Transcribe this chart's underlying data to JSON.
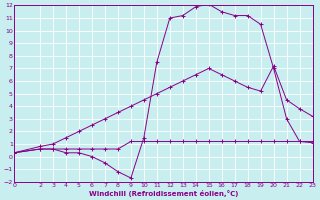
{
  "xlabel": "Windchill (Refroidissement éolien,°C)",
  "background_color": "#c8eef0",
  "grid_color": "#b0d8dc",
  "line_color": "#880088",
  "xlim": [
    0,
    23
  ],
  "ylim": [
    -2,
    12
  ],
  "xticks": [
    0,
    2,
    3,
    4,
    5,
    6,
    7,
    8,
    9,
    10,
    11,
    12,
    13,
    14,
    15,
    16,
    17,
    18,
    19,
    20,
    21,
    22,
    23
  ],
  "yticks": [
    -2,
    -1,
    0,
    1,
    2,
    3,
    4,
    5,
    6,
    7,
    8,
    9,
    10,
    11,
    12
  ],
  "line1_x": [
    0,
    2,
    3,
    4,
    5,
    6,
    7,
    8,
    9,
    10,
    11,
    12,
    13,
    14,
    15,
    16,
    17,
    18,
    19,
    20,
    21,
    22,
    23
  ],
  "line1_y": [
    0.3,
    0.6,
    0.6,
    0.3,
    0.3,
    0.0,
    -0.5,
    -1.2,
    -1.7,
    1.5,
    7.5,
    11.0,
    11.2,
    11.9,
    12.1,
    11.5,
    11.2,
    11.2,
    10.5,
    7.0,
    3.0,
    1.2,
    1.1
  ],
  "line2_x": [
    0,
    2,
    3,
    4,
    5,
    6,
    7,
    8,
    9,
    10,
    11,
    12,
    13,
    14,
    15,
    16,
    17,
    18,
    19,
    20,
    21,
    22,
    23
  ],
  "line2_y": [
    0.3,
    0.8,
    1.0,
    1.5,
    2.0,
    2.5,
    3.0,
    3.5,
    4.0,
    4.5,
    5.0,
    5.5,
    6.0,
    6.5,
    7.0,
    6.5,
    6.0,
    5.5,
    5.2,
    7.2,
    4.5,
    3.8,
    3.2
  ],
  "line3_x": [
    0,
    2,
    3,
    4,
    5,
    6,
    7,
    8,
    9,
    10,
    11,
    12,
    13,
    14,
    15,
    16,
    17,
    18,
    19,
    20,
    21,
    22,
    23
  ],
  "line3_y": [
    0.3,
    0.6,
    0.6,
    0.6,
    0.6,
    0.6,
    0.6,
    0.6,
    1.2,
    1.2,
    1.2,
    1.2,
    1.2,
    1.2,
    1.2,
    1.2,
    1.2,
    1.2,
    1.2,
    1.2,
    1.2,
    1.2,
    1.2
  ]
}
